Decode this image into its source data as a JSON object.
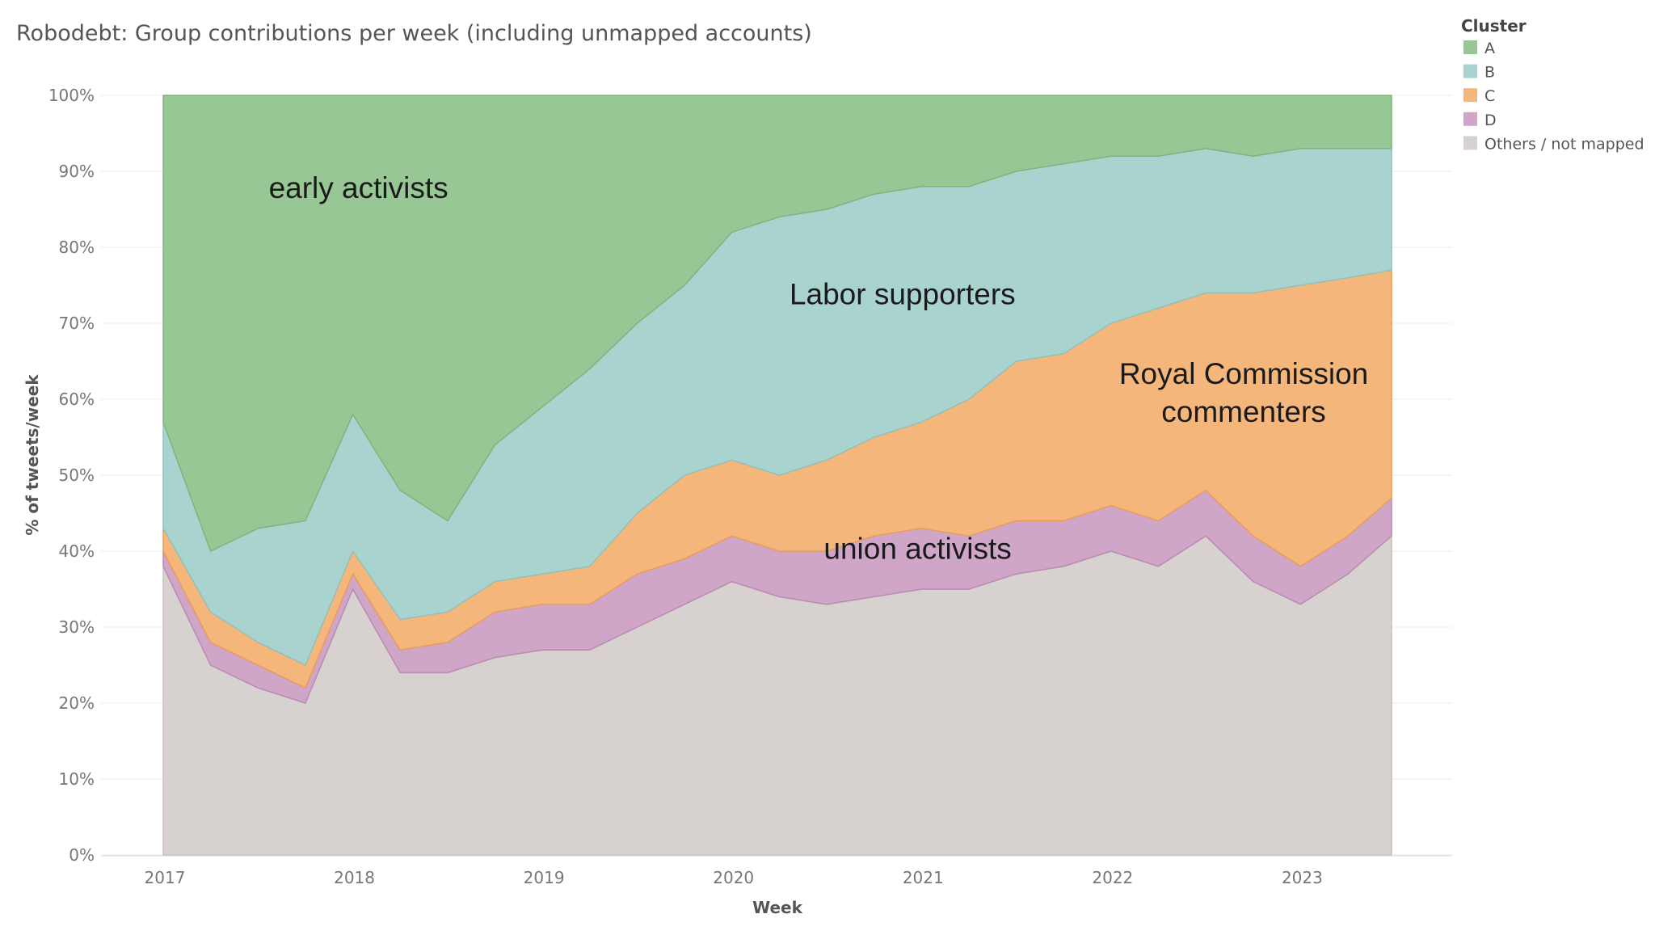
{
  "chart_data": {
    "type": "area",
    "stacked": true,
    "normalized": true,
    "title": "Robodebt: Group contributions per week (including unmapped accounts)",
    "xlabel": "Week",
    "ylabel": "% of tweets/week",
    "xlim": [
      2017.0,
      2023.48
    ],
    "ylim": [
      0,
      100
    ],
    "grid": true,
    "x_ticks": [
      2017,
      2018,
      2019,
      2020,
      2021,
      2022,
      2023
    ],
    "x_tick_labels": [
      "2017",
      "2018",
      "2019",
      "2020",
      "2021",
      "2022",
      "2023"
    ],
    "y_ticks": [
      0,
      10,
      20,
      30,
      40,
      50,
      60,
      70,
      80,
      90,
      100
    ],
    "y_tick_labels": [
      "0%",
      "10%",
      "20%",
      "30%",
      "40%",
      "50%",
      "60%",
      "70%",
      "80%",
      "90%",
      "100%"
    ],
    "x": [
      2017.0,
      2017.25,
      2017.5,
      2017.75,
      2018.0,
      2018.25,
      2018.5,
      2018.75,
      2019.0,
      2019.25,
      2019.5,
      2019.75,
      2020.0,
      2020.25,
      2020.5,
      2020.75,
      2021.0,
      2021.25,
      2021.5,
      2021.75,
      2022.0,
      2022.25,
      2022.5,
      2022.75,
      2023.0,
      2023.25,
      2023.48
    ],
    "cumulative_upper_bounds_note": "values are cumulative stack tops in %",
    "series": [
      {
        "name": "Others / not mapped",
        "color": "#d7d2cf",
        "values": [
          38,
          25,
          22,
          20,
          35,
          24,
          24,
          26,
          27,
          27,
          30,
          33,
          36,
          34,
          33,
          34,
          35,
          35,
          37,
          38,
          40,
          38,
          42,
          36,
          33,
          37,
          42
        ]
      },
      {
        "name": "D",
        "color": "#cfa6c8",
        "values": [
          40,
          28,
          25,
          22,
          37,
          27,
          28,
          32,
          33,
          33,
          37,
          39,
          42,
          40,
          40,
          42,
          43,
          42,
          44,
          44,
          46,
          44,
          48,
          42,
          38,
          42,
          47
        ]
      },
      {
        "name": "C",
        "color": "#f4b67a",
        "values": [
          43,
          32,
          28,
          25,
          40,
          31,
          32,
          36,
          37,
          38,
          45,
          50,
          52,
          50,
          52,
          55,
          57,
          60,
          65,
          66,
          70,
          72,
          74,
          74,
          75,
          76,
          77
        ]
      },
      {
        "name": "B",
        "color": "#a9d3cf",
        "values": [
          57,
          40,
          43,
          44,
          58,
          48,
          44,
          54,
          59,
          64,
          70,
          75,
          82,
          84,
          85,
          87,
          88,
          88,
          90,
          91,
          92,
          92,
          93,
          92,
          93,
          93,
          93
        ]
      },
      {
        "name": "A",
        "color": "#97c795",
        "values": [
          100,
          100,
          100,
          100,
          100,
          100,
          100,
          100,
          100,
          100,
          100,
          100,
          100,
          100,
          100,
          100,
          100,
          100,
          100,
          100,
          100,
          100,
          100,
          100,
          100,
          100,
          100
        ]
      }
    ],
    "series_line_colors": {
      "A": "#7eb57b",
      "B": "#8fc2bd",
      "C": "#eb9d57",
      "D": "#b98bb2",
      "Others / not mapped": "#c7c1bd"
    },
    "legend": {
      "title": "Cluster",
      "placement": "top-right",
      "entries": [
        {
          "label": "A",
          "color": "#97c795"
        },
        {
          "label": "B",
          "color": "#a9d3cf"
        },
        {
          "label": "C",
          "color": "#f4b67a"
        },
        {
          "label": "D",
          "color": "#cfa6c8"
        },
        {
          "label": "Others / not mapped",
          "color": "#d7d2cf"
        }
      ]
    },
    "annotations": [
      {
        "text": "early activists",
        "x": 2018.03,
        "y": 86.5
      },
      {
        "text": "Labor supporters",
        "x": 2020.9,
        "y": 72.5
      },
      {
        "text": "Royal Commission",
        "x": 2022.7,
        "y": 62
      },
      {
        "text": "commenters",
        "x": 2022.7,
        "y": 57
      },
      {
        "text": "union activists",
        "x": 2020.98,
        "y": 39
      }
    ]
  }
}
